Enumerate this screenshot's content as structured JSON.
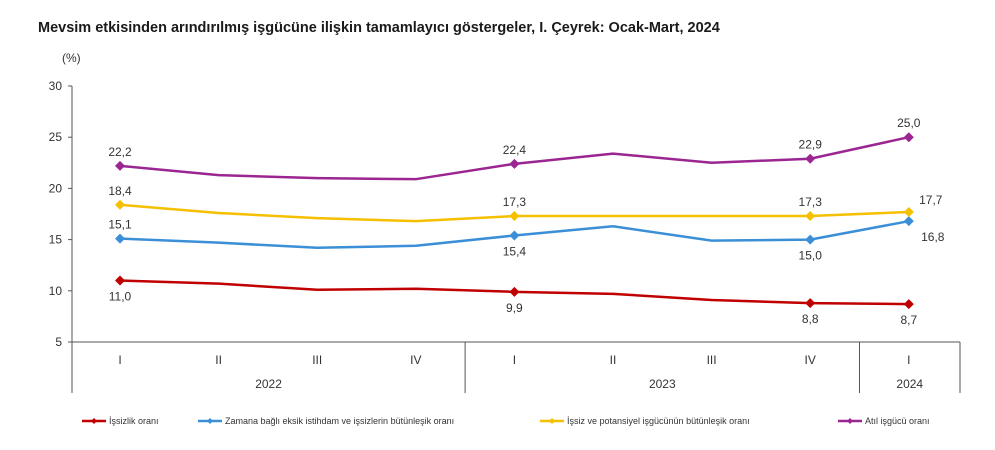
{
  "chart_data": {
    "type": "line",
    "title": "Mevsim etkisinden arındırılmış işgücüne ilişkin tamamlayıcı göstergeler, I. Çeyrek: Ocak-Mart, 2024",
    "ylabel": "(%)",
    "ylim": [
      5,
      30
    ],
    "yticks": [
      5,
      10,
      15,
      20,
      25,
      30
    ],
    "x": [
      "I",
      "II",
      "III",
      "IV",
      "I",
      "II",
      "III",
      "IV",
      "I"
    ],
    "year_groups": [
      {
        "label": "2022",
        "count": 4
      },
      {
        "label": "2023",
        "count": 4
      },
      {
        "label": "2024",
        "count": 1
      }
    ],
    "legend_position": "bottom",
    "series": [
      {
        "name": "İşsizlik oranı",
        "color": "#c00000",
        "values": [
          11.0,
          10.7,
          10.1,
          10.2,
          9.9,
          9.7,
          9.1,
          8.8,
          8.7
        ],
        "labels": [
          "11,0",
          null,
          null,
          null,
          "9,9",
          null,
          null,
          "8,8",
          "8,7"
        ],
        "label_pos": "below"
      },
      {
        "name": "Zamana bağlı eksik istihdam ve işsizlerin bütünleşik oranı",
        "color": "#3b8fd6",
        "values": [
          15.1,
          14.7,
          14.2,
          14.4,
          15.4,
          16.3,
          14.9,
          15.0,
          16.8
        ],
        "labels": [
          "15,1",
          null,
          null,
          null,
          "15,4",
          null,
          null,
          "15,0",
          "16,8"
        ],
        "label_pos": "mixed"
      },
      {
        "name": "İşsiz ve potansiyel işgücünün bütünleşik oranı",
        "color": "#f5c000",
        "values": [
          18.4,
          17.6,
          17.1,
          16.8,
          17.3,
          17.3,
          17.3,
          17.3,
          17.7
        ],
        "labels": [
          "18,4",
          null,
          null,
          null,
          "17,3",
          null,
          null,
          "17,3",
          "17,7"
        ],
        "label_pos": "above"
      },
      {
        "name": "Atıl işgücü oranı",
        "color": "#9b2591",
        "values": [
          22.2,
          21.3,
          21.0,
          20.9,
          22.4,
          23.4,
          22.5,
          22.9,
          25.0
        ],
        "labels": [
          "22,2",
          null,
          null,
          null,
          "22,4",
          null,
          null,
          "22,9",
          "25,0"
        ],
        "label_pos": "above"
      }
    ]
  }
}
